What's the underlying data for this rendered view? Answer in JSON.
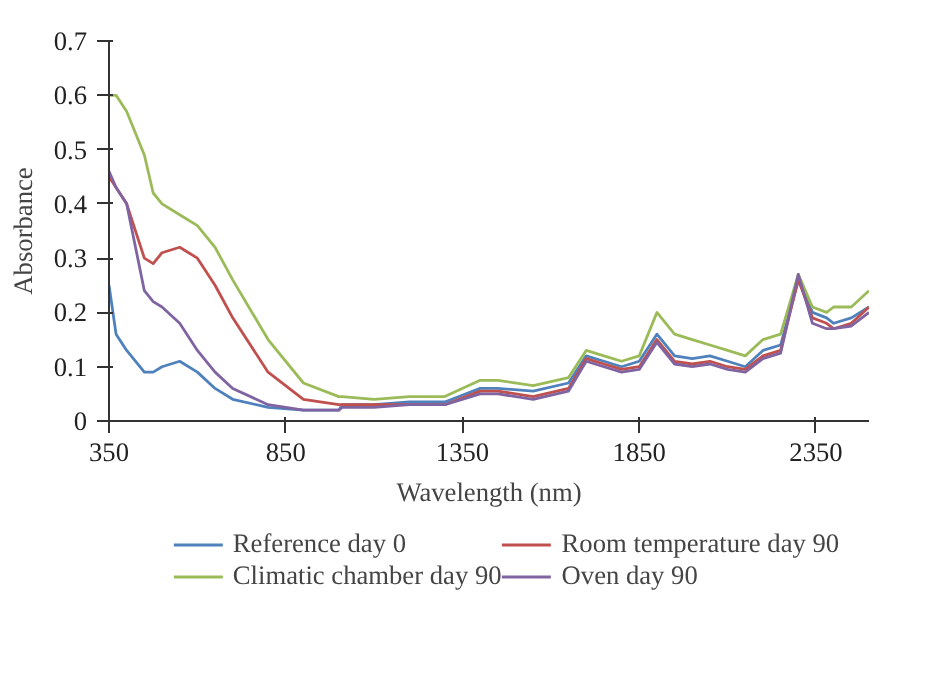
{
  "chart_data": {
    "type": "line",
    "xlabel": "Wavelength (nm)",
    "ylabel": "Absorbance",
    "x": [
      350,
      370,
      400,
      450,
      475,
      500,
      550,
      600,
      650,
      700,
      800,
      900,
      1000,
      1010,
      1100,
      1200,
      1300,
      1400,
      1450,
      1550,
      1650,
      1700,
      1750,
      1800,
      1850,
      1900,
      1950,
      2000,
      2050,
      2100,
      2150,
      2200,
      2250,
      2300,
      2340,
      2380,
      2400,
      2450,
      2500
    ],
    "series": [
      {
        "name": "Reference day 0",
        "color": "#4f81bd",
        "values": [
          0.25,
          0.16,
          0.13,
          0.09,
          0.09,
          0.1,
          0.11,
          0.09,
          0.06,
          0.04,
          0.025,
          0.02,
          0.02,
          0.03,
          0.03,
          0.035,
          0.035,
          0.06,
          0.06,
          0.055,
          0.07,
          0.12,
          0.11,
          0.1,
          0.11,
          0.16,
          0.12,
          0.115,
          0.12,
          0.11,
          0.1,
          0.13,
          0.14,
          0.26,
          0.2,
          0.19,
          0.18,
          0.19,
          0.21
        ]
      },
      {
        "name": "Climatic chamber day 90",
        "color": "#9bbb59",
        "values": [
          0.6,
          0.6,
          0.57,
          0.49,
          0.42,
          0.4,
          0.38,
          0.36,
          0.32,
          0.26,
          0.15,
          0.07,
          0.045,
          0.045,
          0.04,
          0.045,
          0.045,
          0.075,
          0.075,
          0.065,
          0.08,
          0.13,
          0.12,
          0.11,
          0.12,
          0.2,
          0.16,
          0.15,
          0.14,
          0.13,
          0.12,
          0.15,
          0.16,
          0.27,
          0.21,
          0.2,
          0.21,
          0.21,
          0.24
        ]
      },
      {
        "name": "Room temperature day 90",
        "color": "#c0504d",
        "values": [
          0.45,
          0.43,
          0.4,
          0.3,
          0.29,
          0.31,
          0.32,
          0.3,
          0.25,
          0.19,
          0.09,
          0.04,
          0.03,
          0.03,
          0.03,
          0.03,
          0.03,
          0.055,
          0.055,
          0.045,
          0.06,
          0.115,
          0.105,
          0.095,
          0.1,
          0.15,
          0.11,
          0.105,
          0.11,
          0.1,
          0.095,
          0.12,
          0.13,
          0.26,
          0.19,
          0.18,
          0.17,
          0.18,
          0.21
        ]
      },
      {
        "name": "Oven day 90",
        "color": "#8064a2",
        "values": [
          0.46,
          0.43,
          0.4,
          0.24,
          0.22,
          0.21,
          0.18,
          0.13,
          0.09,
          0.06,
          0.03,
          0.02,
          0.02,
          0.025,
          0.025,
          0.03,
          0.03,
          0.05,
          0.05,
          0.04,
          0.055,
          0.11,
          0.1,
          0.09,
          0.095,
          0.145,
          0.105,
          0.1,
          0.105,
          0.095,
          0.09,
          0.115,
          0.125,
          0.27,
          0.18,
          0.17,
          0.17,
          0.175,
          0.2
        ]
      }
    ],
    "xlim": [
      350,
      2500
    ],
    "xticks": [
      350,
      850,
      1350,
      1850,
      2350
    ],
    "ylim": [
      0,
      0.7
    ],
    "yticks": [
      0,
      0.1,
      0.2,
      0.3,
      0.4,
      0.5,
      0.6,
      0.7
    ],
    "grid": false,
    "legend": "bottom",
    "marker": "none",
    "line_style": "solid"
  }
}
